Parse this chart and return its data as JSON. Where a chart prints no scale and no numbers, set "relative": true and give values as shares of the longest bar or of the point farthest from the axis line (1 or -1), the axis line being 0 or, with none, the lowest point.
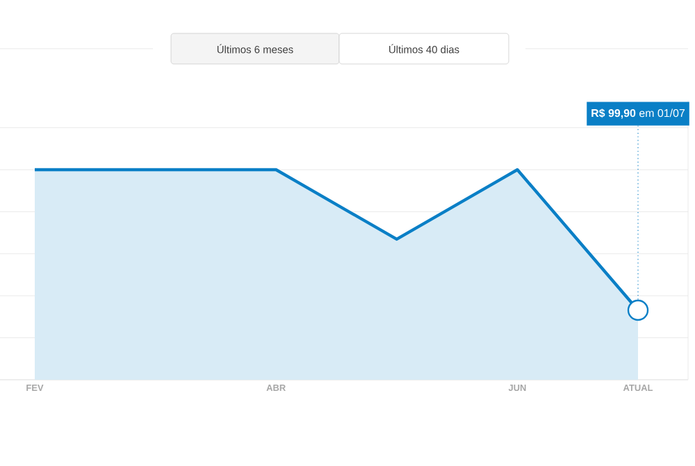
{
  "chart_data": {
    "type": "area",
    "relative": true,
    "color": "#0a7fc6",
    "categories": [
      "FEV",
      null,
      "ABR",
      null,
      "JUN",
      "ATUAL"
    ],
    "values": [
      1,
      1,
      1,
      0.669,
      1,
      0.331
    ],
    "grid": "y",
    "annotations": [
      {
        "text": "**R$ 99,90** em 01/07",
        "x": "ATUAL",
        "y": 0.331
      },
      "Últimos 6 meses",
      "Últimos 40 dias"
    ]
  }
}
